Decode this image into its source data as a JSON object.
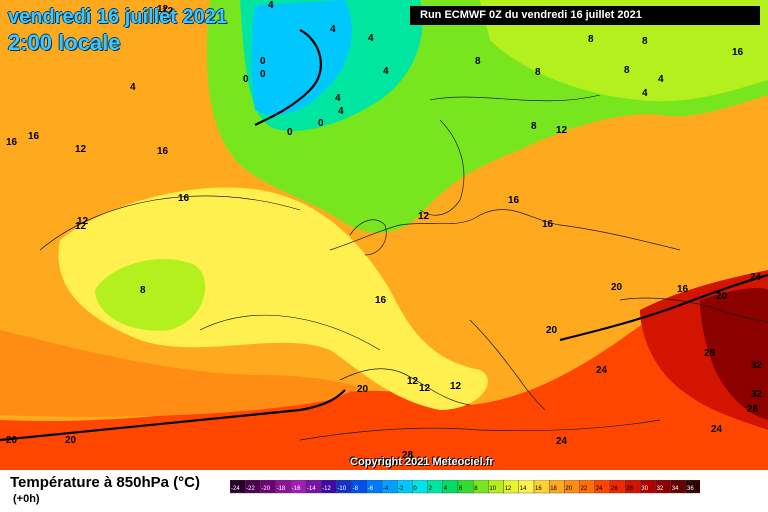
{
  "header": {
    "date": "vendredi 16 juillet 2021",
    "time": "2:00 locale",
    "run": "Run ECMWF 0Z du vendredi 16 juillet 2021"
  },
  "copyright": "Copyright 2021 Meteociel.fr",
  "legend": {
    "title": "Température à 850hPa (°C)",
    "subtitle": "(+0h)",
    "ticks": [
      "-24",
      "-22",
      "-20",
      "-18",
      "-16",
      "-14",
      "-12",
      "-10",
      "-8",
      "-6",
      "-4",
      "-2",
      "0",
      "2",
      "4",
      "6",
      "8",
      "10",
      "12",
      "14",
      "16",
      "18",
      "20",
      "22",
      "24",
      "26",
      "28",
      "30",
      "32",
      "34",
      "36"
    ],
    "colors": [
      "#2a002a",
      "#4b0050",
      "#6e0078",
      "#8c1496",
      "#a01eb4",
      "#7814a0",
      "#3c0aa0",
      "#1432c8",
      "#0050f0",
      "#0078ff",
      "#00a0ff",
      "#00c8ff",
      "#00e6e6",
      "#00e6a0",
      "#00dc64",
      "#32dc32",
      "#78e61e",
      "#b4f01e",
      "#e6f532",
      "#fff050",
      "#ffd232",
      "#ffaa1e",
      "#ff8c14",
      "#ff6e0a",
      "#ff4600",
      "#f02800",
      "#d21400",
      "#b40000",
      "#8c0000",
      "#640000",
      "#320000"
    ]
  },
  "contour_labels": [
    {
      "text": "12"
    },
    {
      "text": "4"
    },
    {
      "text": "4"
    },
    {
      "text": "0"
    },
    {
      "text": "0"
    },
    {
      "text": "4"
    },
    {
      "text": "8"
    },
    {
      "text": "8"
    },
    {
      "text": "4"
    },
    {
      "text": "4"
    },
    {
      "text": "8"
    },
    {
      "text": "4"
    },
    {
      "text": "4"
    },
    {
      "text": "16"
    },
    {
      "text": "4"
    },
    {
      "text": "16"
    },
    {
      "text": "12"
    },
    {
      "text": "16"
    },
    {
      "text": "12"
    },
    {
      "text": "0"
    },
    {
      "text": "0"
    },
    {
      "text": "4"
    },
    {
      "text": "8"
    },
    {
      "text": "12"
    },
    {
      "text": "8"
    },
    {
      "text": "12"
    },
    {
      "text": "16"
    },
    {
      "text": "16"
    },
    {
      "text": "16"
    },
    {
      "text": "12"
    },
    {
      "text": "20"
    },
    {
      "text": "16"
    },
    {
      "text": "20"
    },
    {
      "text": "24"
    },
    {
      "text": "20"
    },
    {
      "text": "28"
    },
    {
      "text": "24"
    },
    {
      "text": "32"
    },
    {
      "text": "32"
    },
    {
      "text": "28"
    },
    {
      "text": "24"
    },
    {
      "text": "24"
    },
    {
      "text": "12"
    },
    {
      "text": "16"
    },
    {
      "text": "12"
    },
    {
      "text": "12"
    },
    {
      "text": "12"
    },
    {
      "text": "20"
    },
    {
      "text": "20"
    },
    {
      "text": "20"
    },
    {
      "text": "28"
    },
    {
      "text": "8"
    },
    {
      "text": "16"
    },
    {
      "text": "4"
    },
    {
      "text": "8"
    },
    {
      "text": "0"
    }
  ]
}
